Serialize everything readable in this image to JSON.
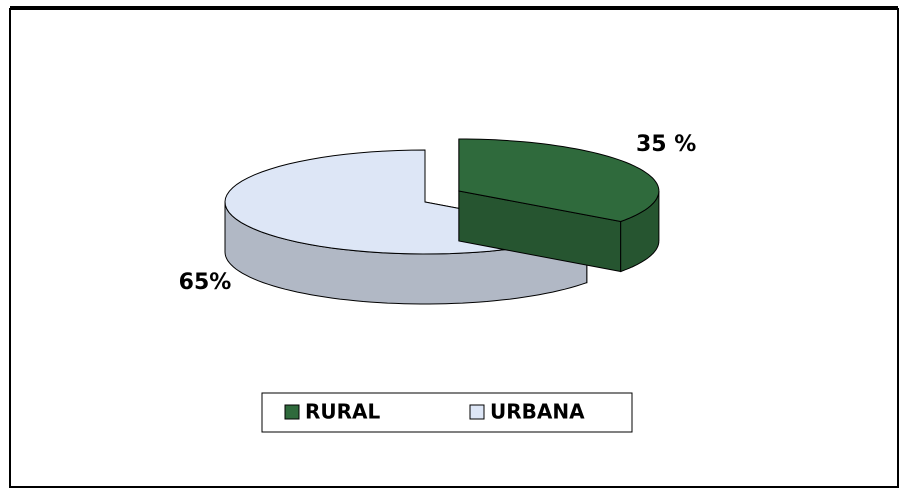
{
  "chart_data": {
    "type": "pie3d",
    "categories": [
      "RURAL",
      "URBANA"
    ],
    "values": [
      35,
      65
    ],
    "value_labels": [
      "35 %",
      "65%"
    ],
    "colors": [
      "#2f6a3c",
      "#dde6f6"
    ],
    "legend": "bottom"
  }
}
